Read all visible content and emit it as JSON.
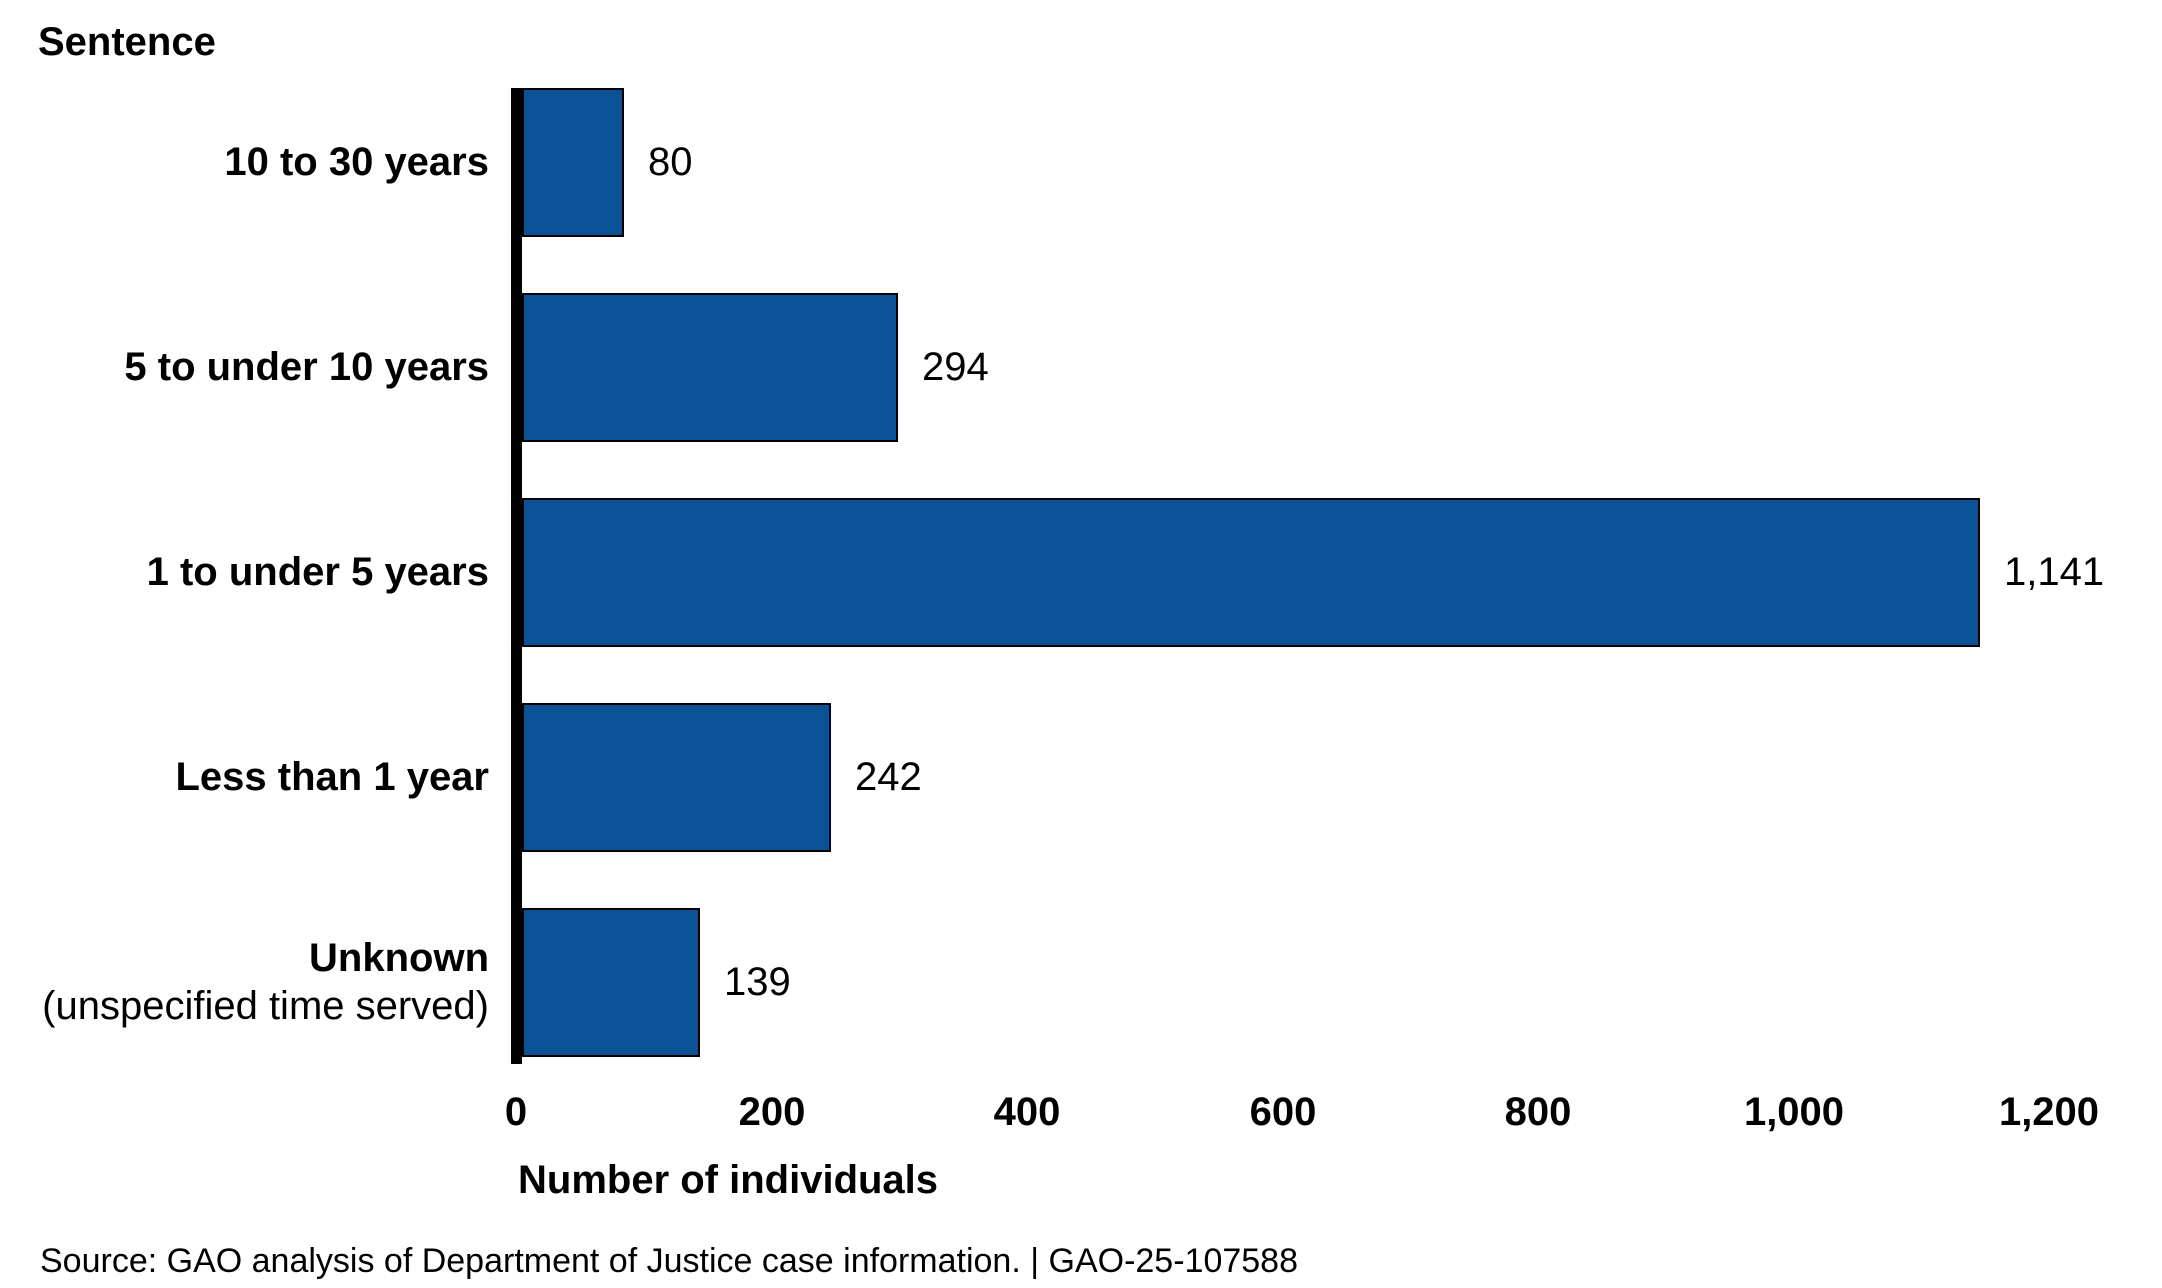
{
  "chart": {
    "title": "Sentence",
    "xlabel": "Number of individuals",
    "source": "Source: GAO analysis of Department of Justice case information.  |  GAO-25-107588"
  },
  "chart_data": {
    "type": "bar",
    "orientation": "horizontal",
    "title": "Sentence",
    "xlabel": "Number of individuals",
    "grid": false,
    "legend": false,
    "bar_color": "#0a5196",
    "bar_border_color": "#000000",
    "axis_color": "#000000",
    "x_axis": {
      "min": 0,
      "max": 1200,
      "ticks": [
        0,
        200,
        400,
        600,
        800,
        1000,
        1200
      ],
      "tick_labels": [
        "0",
        "200",
        "400",
        "600",
        "800",
        "1,000",
        "1,200"
      ]
    },
    "categories": [
      "10 to 30 years",
      "5 to under 10 years",
      "1 to under 5 years",
      "Less than 1 year",
      "Unknown (unspecified time served)"
    ],
    "values": [
      80,
      294,
      1141,
      242,
      139
    ],
    "rows": [
      {
        "label": "10 to 30 years",
        "sublabel": "",
        "value": 80,
        "value_label": "80"
      },
      {
        "label": "5 to under 10 years",
        "sublabel": "",
        "value": 294,
        "value_label": "294"
      },
      {
        "label": "1 to under 5 years",
        "sublabel": "",
        "value": 1141,
        "value_label": "1,141"
      },
      {
        "label": "Less than 1 year",
        "sublabel": "",
        "value": 242,
        "value_label": "242"
      },
      {
        "label": "Unknown",
        "sublabel": "(unspecified time served)",
        "value": 139,
        "value_label": "139"
      }
    ],
    "source": "Source: GAO analysis of Department of Justice case information.  |  GAO-25-107588"
  }
}
